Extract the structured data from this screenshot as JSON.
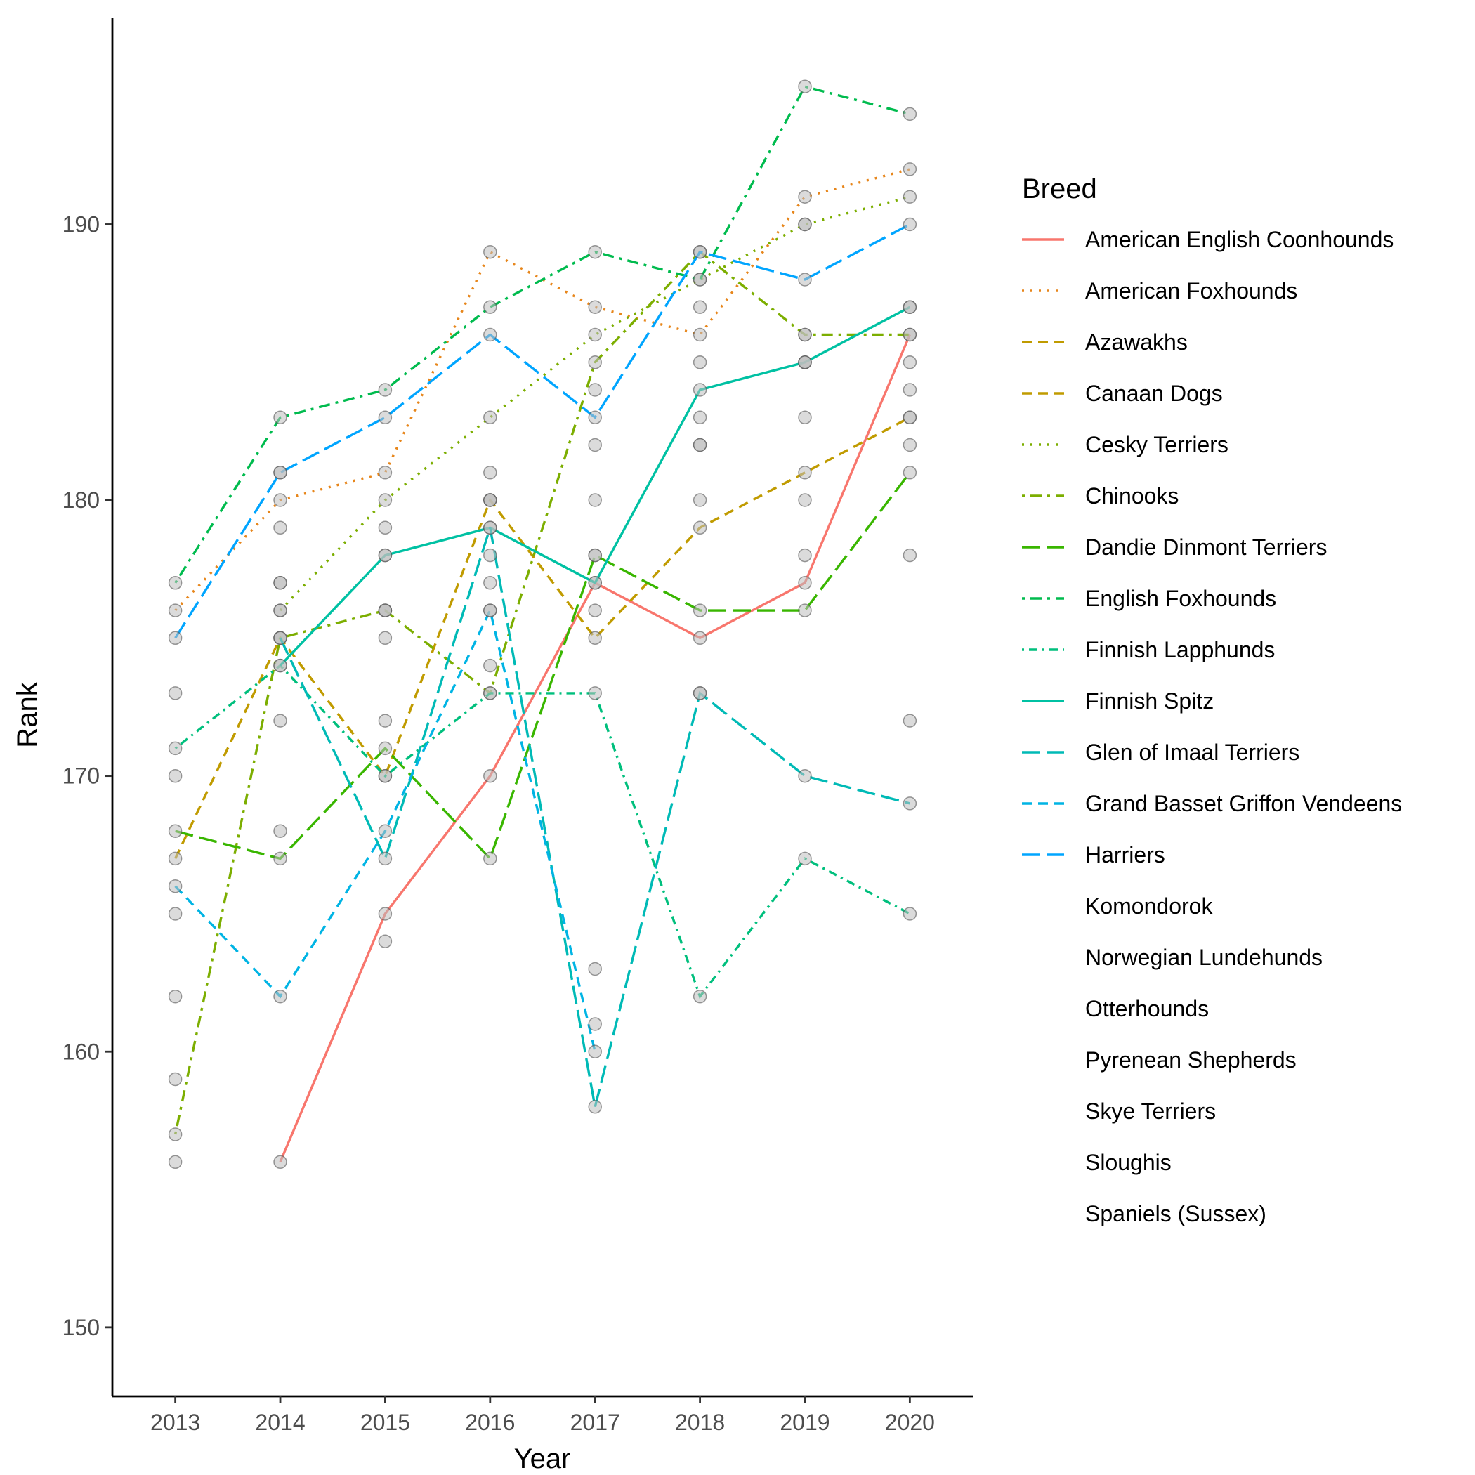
{
  "chart_data": {
    "type": "line",
    "xlabel": "Year",
    "ylabel": "Rank",
    "x": [
      2013,
      2014,
      2015,
      2016,
      2017,
      2018,
      2019,
      2020
    ],
    "xlim": [
      2012.4,
      2020.6
    ],
    "ylim": [
      147.5,
      197.5
    ],
    "yticks": [
      150,
      160,
      170,
      180,
      190
    ],
    "grid": false,
    "legend": {
      "title": "Breed",
      "position": "right"
    },
    "series": [
      {
        "name": "American English Coonhounds",
        "color": "#F8766D",
        "dash": "solid",
        "values": [
          null,
          156,
          165,
          170,
          177,
          175,
          177,
          186
        ]
      },
      {
        "name": "American Foxhounds",
        "color": "#E7861B",
        "dash": "dotted",
        "values": [
          176,
          180,
          181,
          189,
          187,
          186,
          191,
          192
        ]
      },
      {
        "name": "Azawakhs",
        "color": "#C09B00",
        "dash": "dashed",
        "values": [
          null,
          null,
          null,
          null,
          null,
          null,
          null,
          null
        ]
      },
      {
        "name": "Canaan Dogs",
        "color": "#C09B00",
        "dash": "dashed",
        "values": [
          167,
          175,
          170,
          180,
          175,
          179,
          181,
          183
        ]
      },
      {
        "name": "Cesky Terriers",
        "color": "#7CAE00",
        "dash": "dotted",
        "values": [
          null,
          176,
          180,
          183,
          186,
          188,
          190,
          191
        ]
      },
      {
        "name": "Chinooks",
        "color": "#7CAE00",
        "dash": "dashdot",
        "values": [
          157,
          175,
          176,
          173,
          185,
          189,
          186,
          186
        ]
      },
      {
        "name": "Dandie Dinmont Terriers",
        "color": "#39B600",
        "dash": "longdash",
        "values": [
          168,
          167,
          171,
          167,
          178,
          176,
          176,
          181
        ]
      },
      {
        "name": "English Foxhounds",
        "color": "#00BB4E",
        "dash": "dashdot",
        "values": [
          177,
          183,
          184,
          187,
          189,
          188,
          195,
          194
        ]
      },
      {
        "name": "Finnish Lapphunds",
        "color": "#00BF7D",
        "dash": "dotdash",
        "values": [
          171,
          174,
          170,
          173,
          173,
          162,
          167,
          165
        ]
      },
      {
        "name": "Finnish Spitz",
        "color": "#00C1A3",
        "dash": "solid",
        "values": [
          null,
          174,
          178,
          179,
          177,
          184,
          185,
          187
        ]
      },
      {
        "name": "Glen of Imaal Terriers",
        "color": "#00BAB6",
        "dash": "longdash",
        "values": [
          null,
          175,
          167,
          179,
          158,
          173,
          170,
          169
        ]
      },
      {
        "name": "Grand Basset Griffon Vendeens",
        "color": "#00B4E4",
        "dash": "dashed",
        "values": [
          166,
          162,
          168,
          176,
          160,
          null,
          null,
          null
        ]
      },
      {
        "name": "Harriers",
        "color": "#00A5FF",
        "dash": "longdash",
        "values": [
          175,
          181,
          183,
          186,
          183,
          189,
          188,
          190
        ]
      },
      {
        "name": "Komondorok",
        "color": "#8F91FF",
        "dash": "none",
        "values": [
          159,
          168,
          164,
          181,
          163,
          173,
          186,
          178
        ]
      },
      {
        "name": "Norwegian Lundehunds",
        "color": "#BF80FF",
        "dash": "none",
        "values": [
          156,
          176,
          178,
          178,
          176,
          187,
          190,
          187
        ]
      },
      {
        "name": "Otterhounds",
        "color": "#E26EF7",
        "dash": "none",
        "values": [
          173,
          177,
          176,
          177,
          180,
          183,
          185,
          183
        ]
      },
      {
        "name": "Pyrenean Shepherds",
        "color": "#F962DD",
        "dash": "none",
        "values": [
          null,
          181,
          179,
          180,
          178,
          182,
          183,
          184
        ]
      },
      {
        "name": "Skye Terriers",
        "color": "#FF62BC",
        "dash": "none",
        "values": [
          170,
          172,
          175,
          176,
          182,
          180,
          180,
          182
        ]
      },
      {
        "name": "Sloughis",
        "color": "#FF6C92",
        "dash": "none",
        "values": [
          165,
          179,
          176,
          180,
          184,
          185,
          185,
          185
        ]
      },
      {
        "name": "Spaniels (Sussex)",
        "color": "#F8766D",
        "dash": "none",
        "values": [
          162,
          177,
          172,
          174,
          161,
          182,
          178,
          172
        ]
      }
    ]
  }
}
